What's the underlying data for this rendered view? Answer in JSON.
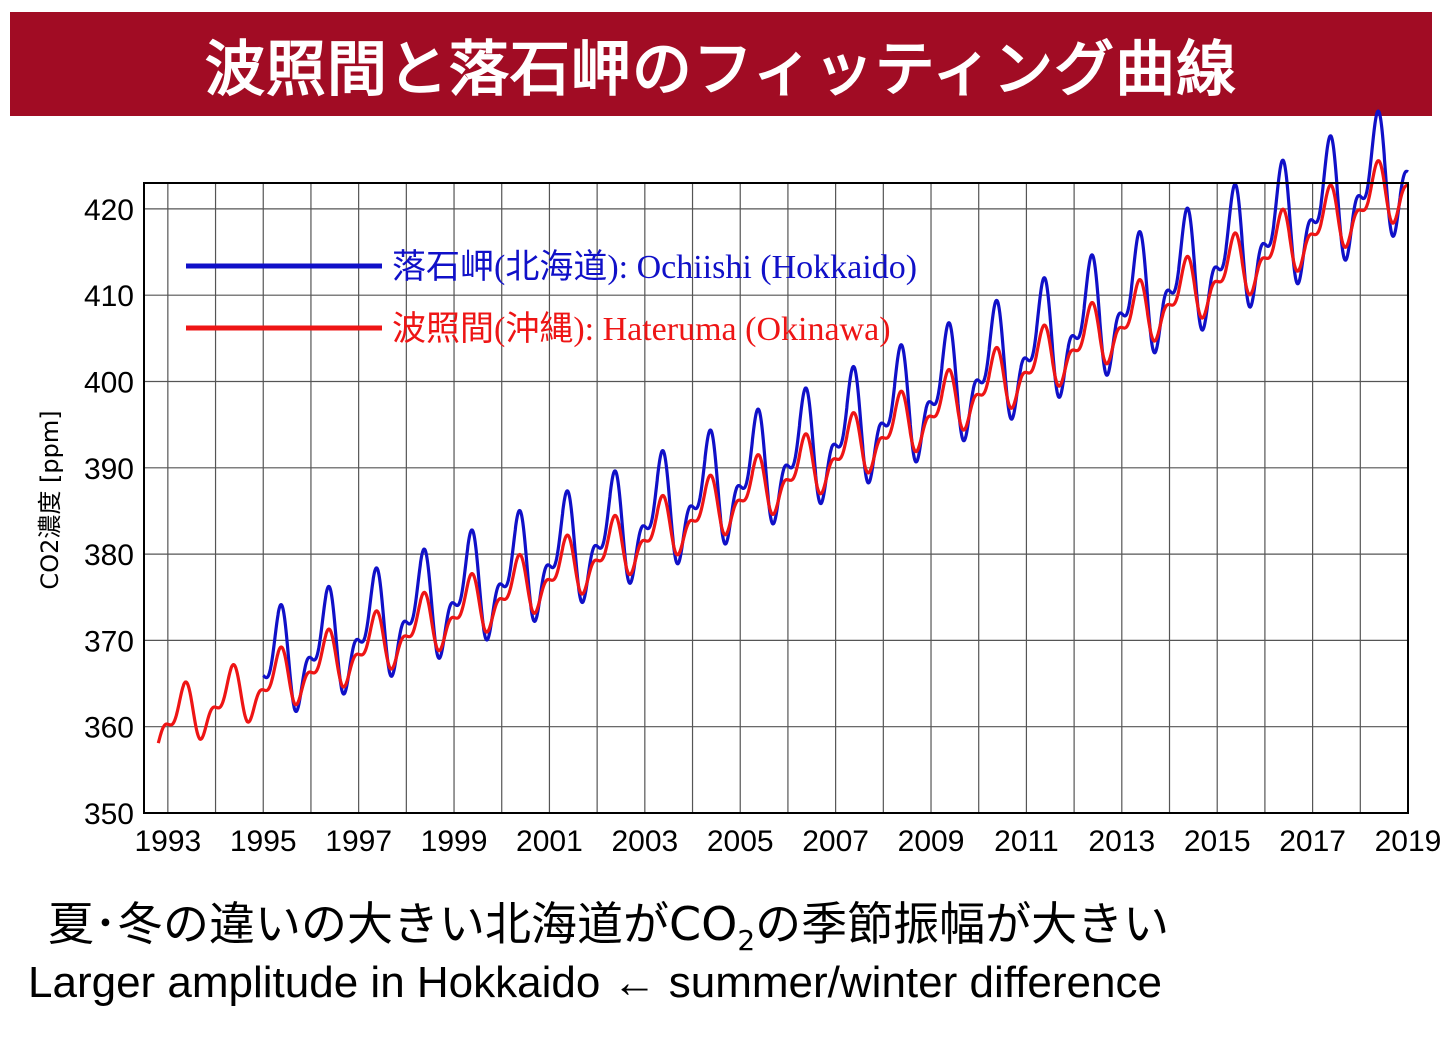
{
  "header": {
    "title": "波照間と落石岬のフィッティング曲線"
  },
  "caption": {
    "jp_before": "夏･冬の違いの大きい北海道がCO",
    "jp_sub": "2",
    "jp_after": "の季節振幅が大きい",
    "en": "Larger amplitude in Hokkaido ← summer/winter difference"
  },
  "chart_data": {
    "type": "line",
    "title": "",
    "xlabel": "",
    "ylabel": "CO2濃度 [ppm]",
    "xlim": [
      1992.5,
      2019
    ],
    "ylim": [
      350,
      423
    ],
    "x_ticks": [
      1993,
      1995,
      1997,
      1999,
      2001,
      2003,
      2005,
      2007,
      2009,
      2011,
      2013,
      2015,
      2017,
      2019
    ],
    "y_ticks": [
      350,
      360,
      370,
      380,
      390,
      400,
      410,
      420
    ],
    "x_grid_minor": [
      1994,
      1996,
      1998,
      2000,
      2002,
      2004,
      2006,
      2008,
      2010,
      2012,
      2014,
      2016,
      2018
    ],
    "grid": true,
    "legend_position": "top-left",
    "series": [
      {
        "name": "落石岬(北海道): Ochiishi (Hokkaido)",
        "color": "#1010c8",
        "start": 1995.0,
        "end": 2019.0,
        "base_start": 362.5,
        "growth_per_year": 1.96,
        "growth_curvature": 0.017,
        "amplitude": 7.4,
        "amplitude_growth": 0.06
      },
      {
        "name": "波照間(沖縄): Hateruma (Okinawa)",
        "color": "#ee1515",
        "start": 1992.8,
        "end": 2019.0,
        "base_start": 360.6,
        "growth_per_year": 1.96,
        "growth_curvature": 0.017,
        "amplitude": 4.2,
        "amplitude_growth": 0.02
      }
    ]
  }
}
